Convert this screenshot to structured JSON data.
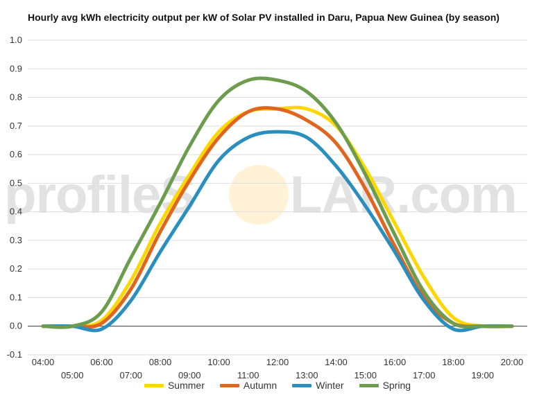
{
  "chart_data": {
    "type": "line",
    "title": "Hourly avg kWh electricity output per kW of Solar PV installed in Daru, Papua New Guinea (by season)",
    "xlabel": "",
    "ylabel": "",
    "ylim": [
      -0.1,
      1.0
    ],
    "yticks": [
      "1.0",
      "0.9",
      "0.8",
      "0.7",
      "0.6",
      "0.5",
      "0.4",
      "0.3",
      "0.2",
      "0.1",
      "0.0",
      "-0.1"
    ],
    "grid": true,
    "legend_position": "bottom",
    "x": [
      "04:00",
      "05:00",
      "06:00",
      "07:00",
      "08:00",
      "09:00",
      "10:00",
      "11:00",
      "12:00",
      "13:00",
      "14:00",
      "15:00",
      "16:00",
      "17:00",
      "18:00",
      "19:00",
      "20:00"
    ],
    "series": [
      {
        "name": "Summer",
        "color": "#FFD700",
        "values": [
          0,
          0,
          0.02,
          0.16,
          0.36,
          0.53,
          0.68,
          0.75,
          0.76,
          0.76,
          0.7,
          0.55,
          0.36,
          0.17,
          0.03,
          0,
          0
        ]
      },
      {
        "name": "Autumn",
        "color": "#E0651E",
        "values": [
          0,
          0,
          0.01,
          0.13,
          0.33,
          0.51,
          0.66,
          0.75,
          0.76,
          0.72,
          0.64,
          0.48,
          0.28,
          0.1,
          0.01,
          0,
          0
        ]
      },
      {
        "name": "Winter",
        "color": "#2A8FBD",
        "values": [
          0,
          0,
          -0.01,
          0.09,
          0.26,
          0.42,
          0.58,
          0.66,
          0.68,
          0.66,
          0.56,
          0.42,
          0.26,
          0.09,
          -0.01,
          0,
          0
        ]
      },
      {
        "name": "Spring",
        "color": "#6E9C4E",
        "values": [
          0,
          0,
          0.05,
          0.24,
          0.43,
          0.63,
          0.79,
          0.86,
          0.86,
          0.82,
          0.71,
          0.53,
          0.32,
          0.12,
          0.01,
          0,
          0
        ]
      }
    ],
    "watermark": "profileSOLAR.com"
  }
}
